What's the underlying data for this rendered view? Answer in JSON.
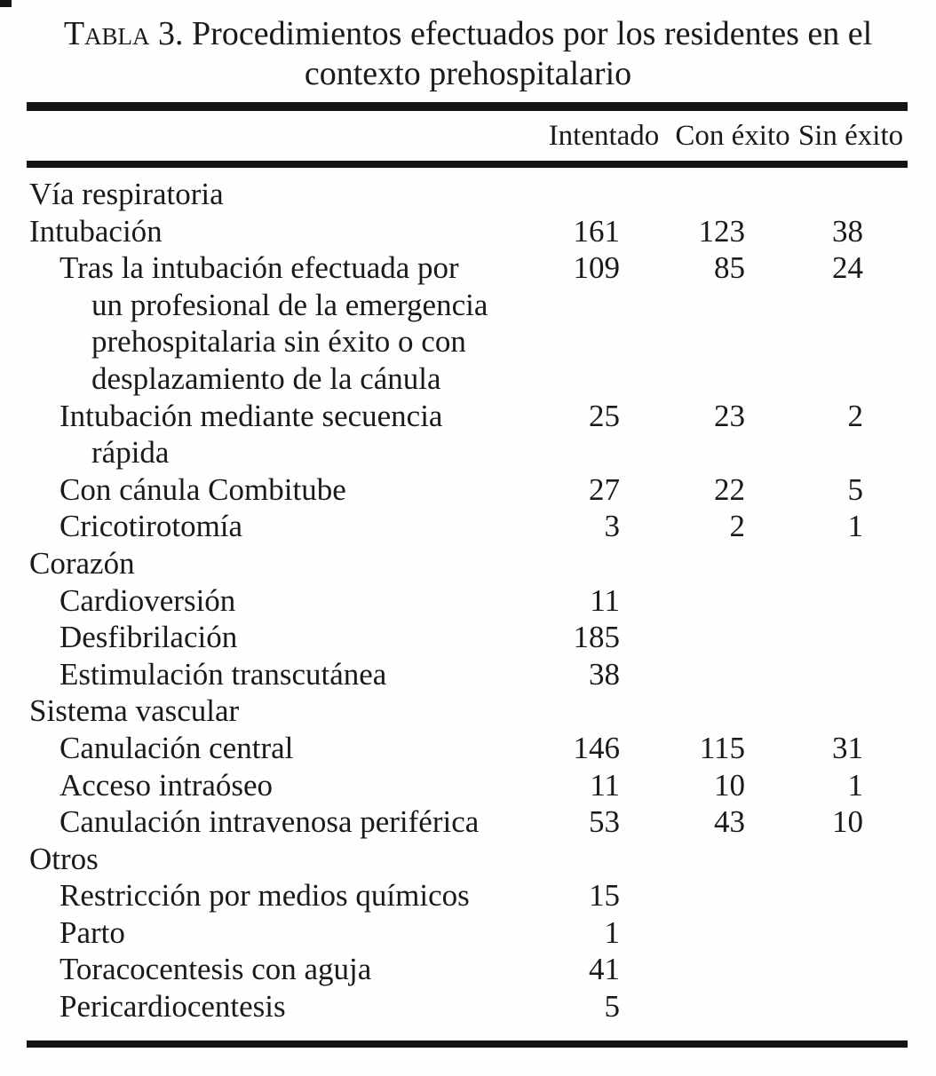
{
  "page": {
    "background": "#fefefe",
    "text_color": "#1a1a1a",
    "rule_color": "#141414"
  },
  "title": {
    "prefix": "Tabla 3.",
    "line1_rest": " Procedimientos efectuados por los residentes en el",
    "line2": "contexto prehospitalario"
  },
  "table": {
    "columns": [
      "Intentado",
      "Con éxito",
      "Sin éxito"
    ],
    "rows": [
      {
        "label": "Vía respiratoria",
        "indent": 0,
        "section": true,
        "intentado": "",
        "con_exito": "",
        "sin_exito": ""
      },
      {
        "label": "Intubación",
        "indent": 0,
        "intentado": "161",
        "con_exito": "123",
        "sin_exito": "38"
      },
      {
        "label": "Tras la intubación efectuada por",
        "indent": 1,
        "intentado": "109",
        "con_exito": "85",
        "sin_exito": "24",
        "continuation": [
          "un profesional de la emergencia",
          "prehospitalaria sin éxito o con",
          "desplazamiento de la cánula"
        ]
      },
      {
        "label": "Intubación mediante secuencia",
        "indent": 1,
        "intentado": "25",
        "con_exito": "23",
        "sin_exito": "2",
        "continuation": [
          "rápida"
        ]
      },
      {
        "label": "Con cánula Combitube",
        "indent": 1,
        "intentado": "27",
        "con_exito": "22",
        "sin_exito": "5"
      },
      {
        "label": "Cricotirotomía",
        "indent": 1,
        "intentado": "3",
        "con_exito": "2",
        "sin_exito": "1"
      },
      {
        "label": "Corazón",
        "indent": 0,
        "section": true,
        "intentado": "",
        "con_exito": "",
        "sin_exito": ""
      },
      {
        "label": "Cardioversión",
        "indent": 1,
        "intentado": "11",
        "con_exito": "",
        "sin_exito": ""
      },
      {
        "label": "Desfibrilación",
        "indent": 1,
        "intentado": "185",
        "con_exito": "",
        "sin_exito": ""
      },
      {
        "label": "Estimulación transcutánea",
        "indent": 1,
        "intentado": "38",
        "con_exito": "",
        "sin_exito": ""
      },
      {
        "label": "Sistema vascular",
        "indent": 0,
        "section": true,
        "intentado": "",
        "con_exito": "",
        "sin_exito": ""
      },
      {
        "label": "Canulación central",
        "indent": 1,
        "intentado": "146",
        "con_exito": "115",
        "sin_exito": "31"
      },
      {
        "label": "Acceso intraóseo",
        "indent": 1,
        "intentado": "11",
        "con_exito": "10",
        "sin_exito": "1"
      },
      {
        "label": "Canulación intravenosa periférica",
        "indent": 1,
        "intentado": "53",
        "con_exito": "43",
        "sin_exito": "10"
      },
      {
        "label": "Otros",
        "indent": 0,
        "section": true,
        "intentado": "",
        "con_exito": "",
        "sin_exito": ""
      },
      {
        "label": "Restricción por medios químicos",
        "indent": 1,
        "intentado": "15",
        "con_exito": "",
        "sin_exito": ""
      },
      {
        "label": "Parto",
        "indent": 1,
        "intentado": "1",
        "con_exito": "",
        "sin_exito": ""
      },
      {
        "label": "Toracocentesis con aguja",
        "indent": 1,
        "intentado": "41",
        "con_exito": "",
        "sin_exito": ""
      },
      {
        "label": "Pericardiocentesis",
        "indent": 1,
        "intentado": "5",
        "con_exito": "",
        "sin_exito": ""
      }
    ]
  }
}
